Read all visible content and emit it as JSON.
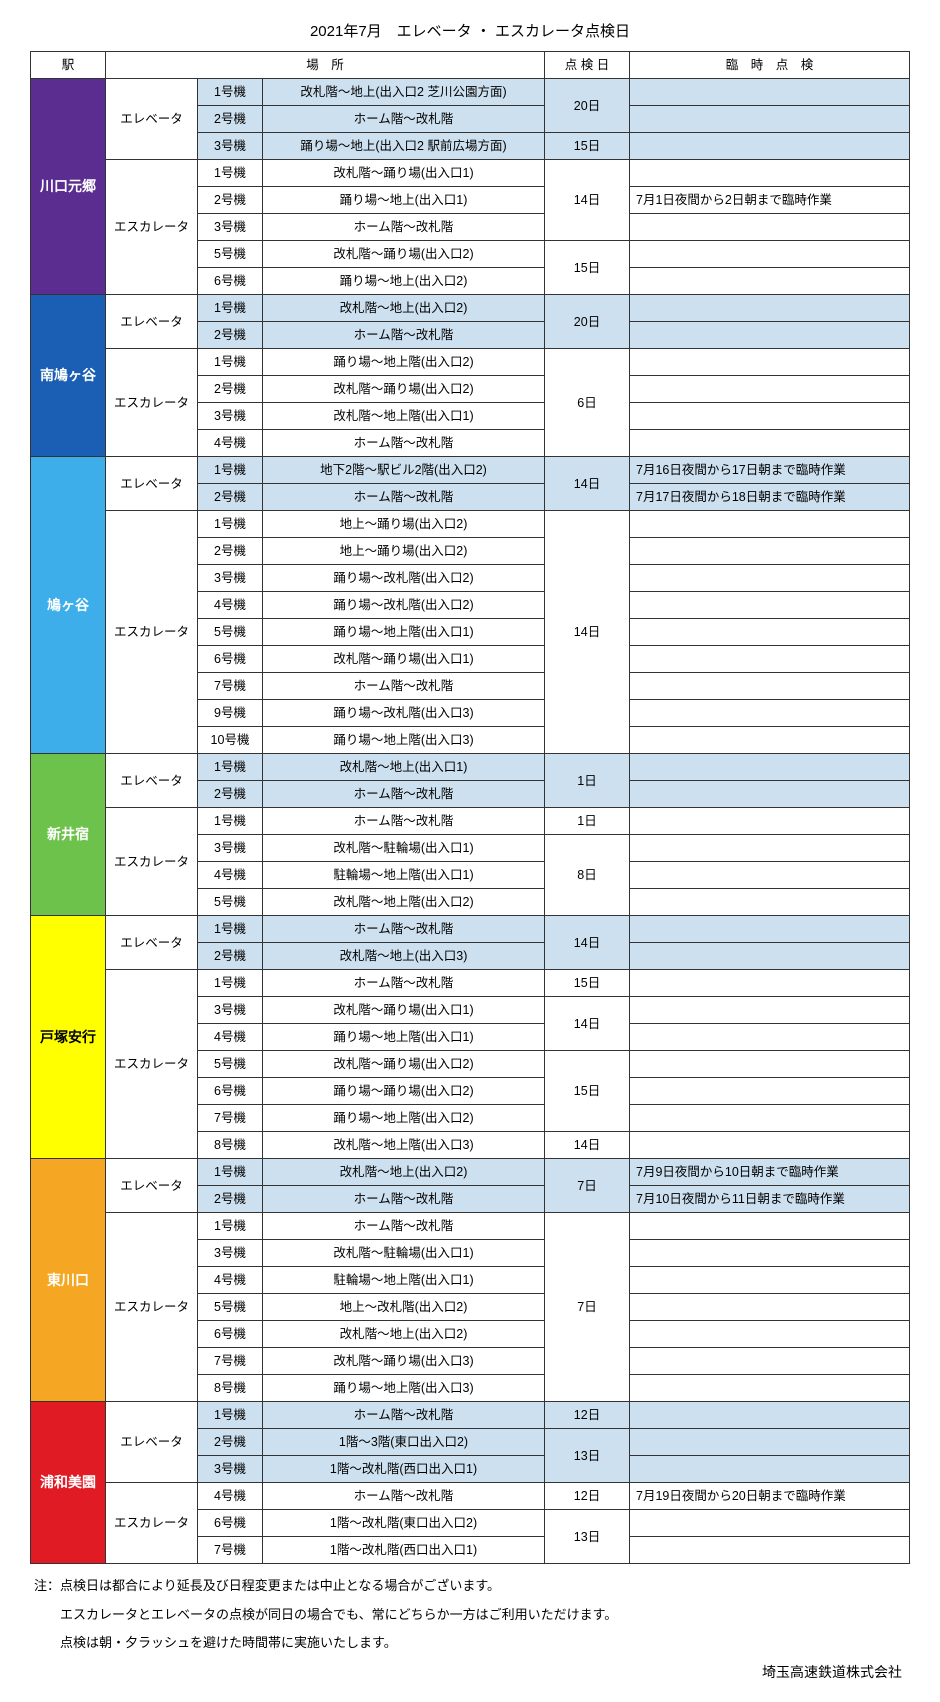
{
  "title": "2021年7月　エレベータ ・ エスカレータ点検日",
  "headers": {
    "station": "駅",
    "location": "場　所",
    "date": "点 検 日",
    "special": "臨　時　点　検"
  },
  "colors": {
    "elevator_bg": "#cde0ef",
    "border": "#333333"
  },
  "stations": [
    {
      "name": "川口元郷",
      "color": "#5b2d91",
      "groups": [
        {
          "type": "エレベータ",
          "is_elevator": true,
          "rows": [
            {
              "unit": "1号機",
              "loc": "改札階～地上(出入口2 芝川公園方面)",
              "date": "20日",
              "date_span": 2,
              "sp": ""
            },
            {
              "unit": "2号機",
              "loc": "ホーム階～改札階",
              "sp": ""
            },
            {
              "unit": "3号機",
              "loc": "踊り場～地上(出入口2 駅前広場方面)",
              "date": "15日",
              "date_span": 1,
              "sp": ""
            }
          ]
        },
        {
          "type": "エスカレータ",
          "is_elevator": false,
          "rows": [
            {
              "unit": "1号機",
              "loc": "改札階～踊り場(出入口1)",
              "date": "14日",
              "date_span": 3,
              "sp": ""
            },
            {
              "unit": "2号機",
              "loc": "踊り場～地上(出入口1)",
              "sp": "7月1日夜間から2日朝まで臨時作業"
            },
            {
              "unit": "3号機",
              "loc": "ホーム階～改札階",
              "sp": ""
            },
            {
              "unit": "5号機",
              "loc": "改札階～踊り場(出入口2)",
              "date": "15日",
              "date_span": 2,
              "sp": ""
            },
            {
              "unit": "6号機",
              "loc": "踊り場～地上(出入口2)",
              "sp": ""
            }
          ]
        }
      ]
    },
    {
      "name": "南鳩ヶ谷",
      "color": "#1a5fb4",
      "groups": [
        {
          "type": "エレベータ",
          "is_elevator": true,
          "rows": [
            {
              "unit": "1号機",
              "loc": "改札階～地上(出入口2)",
              "date": "20日",
              "date_span": 2,
              "sp": ""
            },
            {
              "unit": "2号機",
              "loc": "ホーム階～改札階",
              "sp": ""
            }
          ]
        },
        {
          "type": "エスカレータ",
          "is_elevator": false,
          "rows": [
            {
              "unit": "1号機",
              "loc": "踊り場～地上階(出入口2)",
              "date": "6日",
              "date_span": 4,
              "sp": ""
            },
            {
              "unit": "2号機",
              "loc": "改札階～踊り場(出入口2)",
              "sp": ""
            },
            {
              "unit": "3号機",
              "loc": "改札階～地上階(出入口1)",
              "sp": ""
            },
            {
              "unit": "4号機",
              "loc": "ホーム階～改札階",
              "sp": ""
            }
          ]
        }
      ]
    },
    {
      "name": "鳩ヶ谷",
      "color": "#3daee9",
      "groups": [
        {
          "type": "エレベータ",
          "is_elevator": true,
          "rows": [
            {
              "unit": "1号機",
              "loc": "地下2階～駅ビル2階(出入口2)",
              "date": "14日",
              "date_span": 2,
              "sp": "7月16日夜間から17日朝まで臨時作業"
            },
            {
              "unit": "2号機",
              "loc": "ホーム階～改札階",
              "sp": "7月17日夜間から18日朝まで臨時作業"
            }
          ]
        },
        {
          "type": "エスカレータ",
          "is_elevator": false,
          "rows": [
            {
              "unit": "1号機",
              "loc": "地上～踊り場(出入口2)",
              "date": "14日",
              "date_span": 9,
              "sp": ""
            },
            {
              "unit": "2号機",
              "loc": "地上～踊り場(出入口2)",
              "sp": ""
            },
            {
              "unit": "3号機",
              "loc": "踊り場～改札階(出入口2)",
              "sp": ""
            },
            {
              "unit": "4号機",
              "loc": "踊り場～改札階(出入口2)",
              "sp": ""
            },
            {
              "unit": "5号機",
              "loc": "踊り場～地上階(出入口1)",
              "sp": ""
            },
            {
              "unit": "6号機",
              "loc": "改札階～踊り場(出入口1)",
              "sp": ""
            },
            {
              "unit": "7号機",
              "loc": "ホーム階～改札階",
              "sp": ""
            },
            {
              "unit": "9号機",
              "loc": "踊り場～改札階(出入口3)",
              "sp": ""
            },
            {
              "unit": "10号機",
              "loc": "踊り場～地上階(出入口3)",
              "sp": ""
            }
          ]
        }
      ]
    },
    {
      "name": "新井宿",
      "color": "#6cc24a",
      "groups": [
        {
          "type": "エレベータ",
          "is_elevator": true,
          "rows": [
            {
              "unit": "1号機",
              "loc": "改札階～地上(出入口1)",
              "date": "1日",
              "date_span": 2,
              "sp": ""
            },
            {
              "unit": "2号機",
              "loc": "ホーム階～改札階",
              "sp": ""
            }
          ]
        },
        {
          "type": "エスカレータ",
          "is_elevator": false,
          "rows": [
            {
              "unit": "1号機",
              "loc": "ホーム階～改札階",
              "date": "1日",
              "date_span": 1,
              "sp": ""
            },
            {
              "unit": "3号機",
              "loc": "改札階～駐輪場(出入口1)",
              "date": "8日",
              "date_span": 3,
              "sp": ""
            },
            {
              "unit": "4号機",
              "loc": "駐輪場～地上階(出入口1)",
              "sp": ""
            },
            {
              "unit": "5号機",
              "loc": "改札階～地上階(出入口2)",
              "sp": ""
            }
          ]
        }
      ]
    },
    {
      "name": "戸塚安行",
      "color": "#ffff00",
      "text_color": "#000000",
      "groups": [
        {
          "type": "エレベータ",
          "is_elevator": true,
          "rows": [
            {
              "unit": "1号機",
              "loc": "ホーム階～改札階",
              "date": "14日",
              "date_span": 2,
              "sp": ""
            },
            {
              "unit": "2号機",
              "loc": "改札階～地上(出入口3)",
              "sp": ""
            }
          ]
        },
        {
          "type": "エスカレータ",
          "is_elevator": false,
          "rows": [
            {
              "unit": "1号機",
              "loc": "ホーム階～改札階",
              "date": "15日",
              "date_span": 1,
              "sp": ""
            },
            {
              "unit": "3号機",
              "loc": "改札階～踊り場(出入口1)",
              "date": "14日",
              "date_span": 2,
              "sp": ""
            },
            {
              "unit": "4号機",
              "loc": "踊り場～地上階(出入口1)",
              "sp": ""
            },
            {
              "unit": "5号機",
              "loc": "改札階～踊り場(出入口2)",
              "date": "15日",
              "date_span": 3,
              "sp": ""
            },
            {
              "unit": "6号機",
              "loc": "踊り場～踊り場(出入口2)",
              "sp": ""
            },
            {
              "unit": "7号機",
              "loc": "踊り場～地上階(出入口2)",
              "sp": ""
            },
            {
              "unit": "8号機",
              "loc": "改札階～地上階(出入口3)",
              "date": "14日",
              "date_span": 1,
              "sp": ""
            }
          ]
        }
      ]
    },
    {
      "name": "東川口",
      "color": "#f5a623",
      "groups": [
        {
          "type": "エレベータ",
          "is_elevator": true,
          "rows": [
            {
              "unit": "1号機",
              "loc": "改札階～地上(出入口2)",
              "date": "7日",
              "date_span": 2,
              "sp": "7月9日夜間から10日朝まで臨時作業"
            },
            {
              "unit": "2号機",
              "loc": "ホーム階～改札階",
              "sp": "7月10日夜間から11日朝まで臨時作業"
            }
          ]
        },
        {
          "type": "エスカレータ",
          "is_elevator": false,
          "rows": [
            {
              "unit": "1号機",
              "loc": "ホーム階～改札階",
              "date": "7日",
              "date_span": 7,
              "sp": ""
            },
            {
              "unit": "3号機",
              "loc": "改札階～駐輪場(出入口1)",
              "sp": ""
            },
            {
              "unit": "4号機",
              "loc": "駐輪場～地上階(出入口1)",
              "sp": ""
            },
            {
              "unit": "5号機",
              "loc": "地上～改札階(出入口2)",
              "sp": ""
            },
            {
              "unit": "6号機",
              "loc": "改札階～地上(出入口2)",
              "sp": ""
            },
            {
              "unit": "7号機",
              "loc": "改札階～踊り場(出入口3)",
              "sp": ""
            },
            {
              "unit": "8号機",
              "loc": "踊り場～地上階(出入口3)",
              "sp": ""
            }
          ]
        }
      ]
    },
    {
      "name": "浦和美園",
      "color": "#e01b24",
      "groups": [
        {
          "type": "エレベータ",
          "is_elevator": true,
          "rows": [
            {
              "unit": "1号機",
              "loc": "ホーム階～改札階",
              "date": "12日",
              "date_span": 1,
              "sp": ""
            },
            {
              "unit": "2号機",
              "loc": "1階～3階(東口出入口2)",
              "date": "13日",
              "date_span": 2,
              "sp": ""
            },
            {
              "unit": "3号機",
              "loc": "1階～改札階(西口出入口1)",
              "sp": ""
            }
          ]
        },
        {
          "type": "エスカレータ",
          "is_elevator": false,
          "rows": [
            {
              "unit": "4号機",
              "loc": "ホーム階～改札階",
              "date": "12日",
              "date_span": 1,
              "sp": "7月19日夜間から20日朝まで臨時作業"
            },
            {
              "unit": "6号機",
              "loc": "1階～改札階(東口出入口2)",
              "date": "13日",
              "date_span": 2,
              "sp": ""
            },
            {
              "unit": "7号機",
              "loc": "1階～改札階(西口出入口1)",
              "sp": ""
            }
          ]
        }
      ]
    }
  ],
  "notes": [
    "注：点検日は都合により延長及び日程変更または中止となる場合がございます。",
    "　　エスカレータとエレベータの点検が同日の場合でも、常にどちらか一方はご利用いただけます。",
    "　　点検は朝・夕ラッシュを避けた時間帯に実施いたします。"
  ],
  "footer": "埼玉高速鉄道株式会社"
}
